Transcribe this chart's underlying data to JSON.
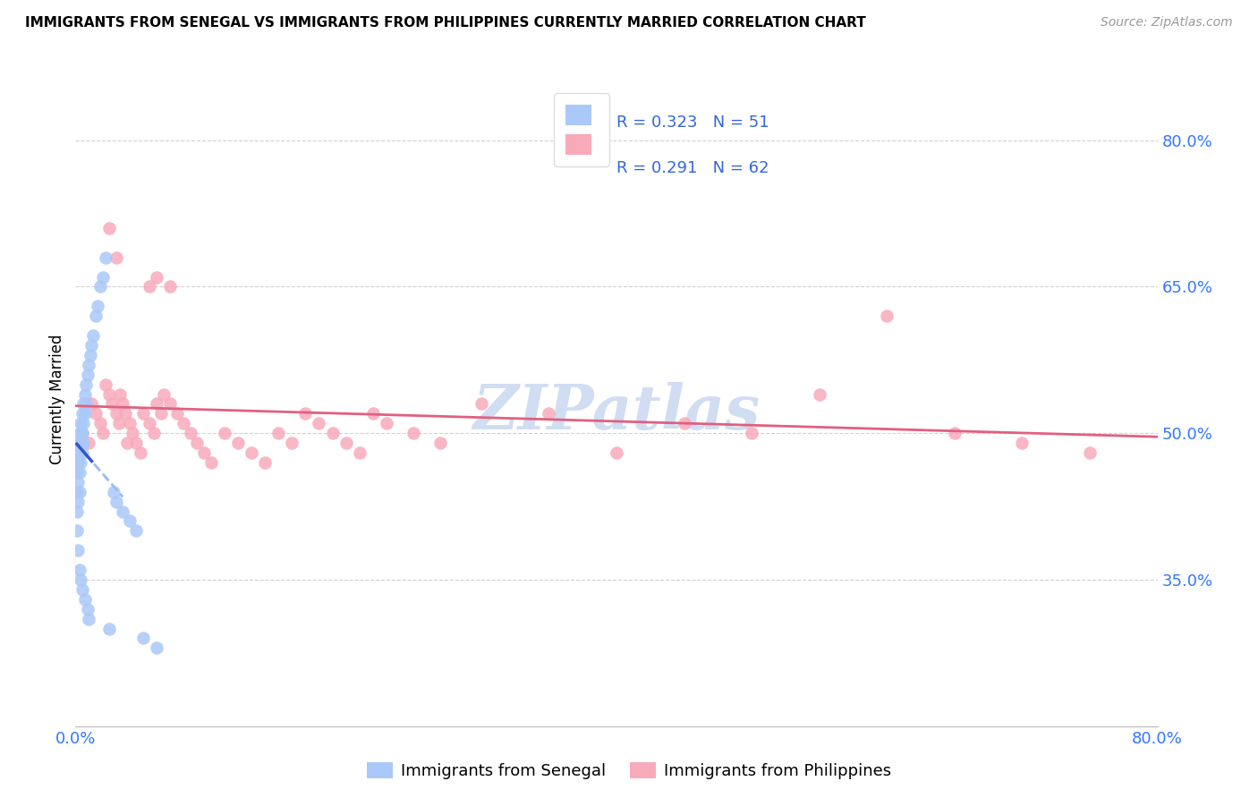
{
  "title": "IMMIGRANTS FROM SENEGAL VS IMMIGRANTS FROM PHILIPPINES CURRENTLY MARRIED CORRELATION CHART",
  "source": "Source: ZipAtlas.com",
  "ylabel": "Currently Married",
  "xmin": 0.0,
  "xmax": 0.8,
  "ymin": 0.2,
  "ymax": 0.87,
  "yticks": [
    0.35,
    0.5,
    0.65,
    0.8
  ],
  "ytick_labels": [
    "35.0%",
    "50.0%",
    "65.0%",
    "80.0%"
  ],
  "senegal_R": 0.323,
  "senegal_N": 51,
  "philippines_R": 0.291,
  "philippines_N": 62,
  "senegal_color": "#aac8f8",
  "philippines_color": "#f8aabb",
  "senegal_line_color_solid": "#3355cc",
  "senegal_line_color_dash": "#99bbee",
  "philippines_line_color": "#e06080",
  "watermark": "ZIPatlas",
  "watermark_color": "#c8d8f0",
  "senegal_x": [
    0.001,
    0.001,
    0.001,
    0.001,
    0.001,
    0.002,
    0.002,
    0.002,
    0.002,
    0.002,
    0.003,
    0.003,
    0.003,
    0.003,
    0.003,
    0.004,
    0.004,
    0.004,
    0.004,
    0.005,
    0.005,
    0.005,
    0.005,
    0.006,
    0.006,
    0.006,
    0.007,
    0.007,
    0.007,
    0.008,
    0.008,
    0.009,
    0.009,
    0.01,
    0.01,
    0.011,
    0.012,
    0.013,
    0.015,
    0.016,
    0.018,
    0.02,
    0.022,
    0.025,
    0.028,
    0.03,
    0.035,
    0.04,
    0.045,
    0.05,
    0.06
  ],
  "senegal_y": [
    0.48,
    0.46,
    0.44,
    0.42,
    0.4,
    0.49,
    0.47,
    0.45,
    0.43,
    0.38,
    0.5,
    0.48,
    0.46,
    0.44,
    0.36,
    0.51,
    0.49,
    0.47,
    0.35,
    0.52,
    0.5,
    0.48,
    0.34,
    0.53,
    0.51,
    0.49,
    0.54,
    0.52,
    0.33,
    0.55,
    0.53,
    0.56,
    0.32,
    0.57,
    0.31,
    0.58,
    0.59,
    0.6,
    0.62,
    0.63,
    0.65,
    0.66,
    0.68,
    0.3,
    0.44,
    0.43,
    0.42,
    0.41,
    0.4,
    0.29,
    0.28
  ],
  "philippines_x": [
    0.005,
    0.01,
    0.012,
    0.015,
    0.018,
    0.02,
    0.022,
    0.025,
    0.027,
    0.03,
    0.032,
    0.033,
    0.035,
    0.037,
    0.038,
    0.04,
    0.042,
    0.045,
    0.048,
    0.05,
    0.055,
    0.058,
    0.06,
    0.063,
    0.065,
    0.07,
    0.075,
    0.08,
    0.085,
    0.09,
    0.095,
    0.1,
    0.11,
    0.12,
    0.13,
    0.14,
    0.15,
    0.16,
    0.17,
    0.18,
    0.19,
    0.2,
    0.21,
    0.22,
    0.23,
    0.25,
    0.27,
    0.3,
    0.35,
    0.4,
    0.45,
    0.5,
    0.55,
    0.6,
    0.65,
    0.7,
    0.75,
    0.025,
    0.03,
    0.055,
    0.06,
    0.07
  ],
  "philippines_y": [
    0.5,
    0.49,
    0.53,
    0.52,
    0.51,
    0.5,
    0.55,
    0.54,
    0.53,
    0.52,
    0.51,
    0.54,
    0.53,
    0.52,
    0.49,
    0.51,
    0.5,
    0.49,
    0.48,
    0.52,
    0.51,
    0.5,
    0.53,
    0.52,
    0.54,
    0.53,
    0.52,
    0.51,
    0.5,
    0.49,
    0.48,
    0.47,
    0.5,
    0.49,
    0.48,
    0.47,
    0.5,
    0.49,
    0.52,
    0.51,
    0.5,
    0.49,
    0.48,
    0.52,
    0.51,
    0.5,
    0.49,
    0.53,
    0.52,
    0.48,
    0.51,
    0.5,
    0.54,
    0.62,
    0.5,
    0.49,
    0.48,
    0.71,
    0.68,
    0.65,
    0.66,
    0.65
  ]
}
